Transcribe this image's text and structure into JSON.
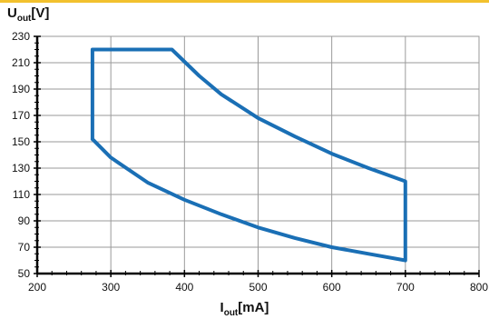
{
  "chart_data": {
    "type": "line",
    "ylabel": {
      "main": "U",
      "sub": "out",
      "unit": "[V]"
    },
    "xlabel": {
      "main": "I",
      "sub": "out",
      "unit": "[mA]"
    },
    "xlim": [
      200,
      800
    ],
    "ylim": [
      50,
      230
    ],
    "x_ticks": [
      200,
      300,
      400,
      500,
      600,
      700,
      800
    ],
    "y_ticks": [
      50,
      70,
      90,
      110,
      130,
      150,
      170,
      190,
      210,
      230
    ],
    "grid": true,
    "series": [
      {
        "color": "#1a6fb5",
        "points": [
          [
            275,
            152
          ],
          [
            300,
            138
          ],
          [
            350,
            119
          ],
          [
            400,
            106
          ],
          [
            450,
            95
          ],
          [
            500,
            85
          ],
          [
            550,
            77
          ],
          [
            600,
            70
          ],
          [
            650,
            65
          ],
          [
            700,
            60
          ],
          [
            700,
            120
          ],
          [
            650,
            130
          ],
          [
            600,
            141
          ],
          [
            550,
            154
          ],
          [
            500,
            168
          ],
          [
            450,
            186
          ],
          [
            420,
            200
          ],
          [
            383,
            220
          ],
          [
            275,
            220
          ],
          [
            275,
            152
          ]
        ]
      }
    ]
  },
  "colors": {
    "accent": "#f2c12e",
    "line": "#1a6fb5",
    "grid": "#9a9a9a",
    "axis": "#000000"
  }
}
